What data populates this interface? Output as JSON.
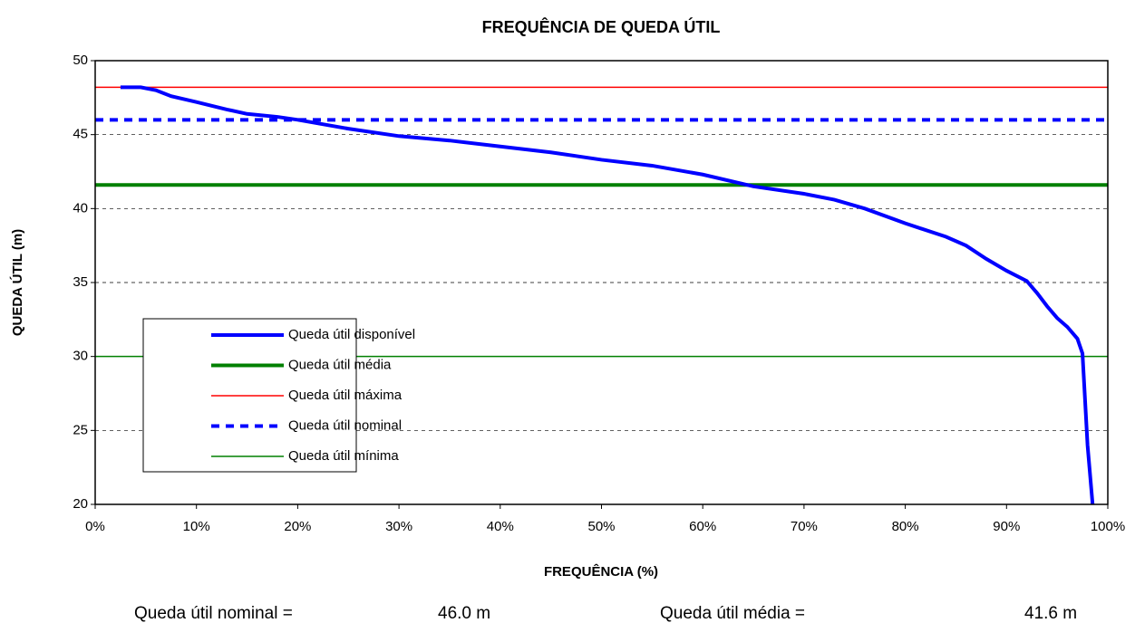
{
  "chart_data": {
    "type": "line",
    "title": "FREQUÊNCIA DE QUEDA ÚTIL",
    "xlabel": "FREQUÊNCIA (%)",
    "ylabel": "QUEDA ÚTIL (m)",
    "xlim": [
      0,
      100
    ],
    "xticks": [
      {
        "value": 0,
        "label": "0%"
      },
      {
        "value": 10,
        "label": "10%"
      },
      {
        "value": 20,
        "label": "20%"
      },
      {
        "value": 30,
        "label": "30%"
      },
      {
        "value": 40,
        "label": "40%"
      },
      {
        "value": 50,
        "label": "50%"
      },
      {
        "value": 60,
        "label": "60%"
      },
      {
        "value": 70,
        "label": "70%"
      },
      {
        "value": 80,
        "label": "80%"
      },
      {
        "value": 90,
        "label": "90%"
      },
      {
        "value": 100,
        "label": "100%"
      }
    ],
    "ylim": [
      20,
      50
    ],
    "yticks": [
      20,
      25,
      30,
      35,
      40,
      45,
      50
    ],
    "grid": true,
    "legend": "lower-left",
    "series": [
      {
        "name": "Queda útil disponível",
        "color": "#0000ff",
        "line_width": 4,
        "dashed": false,
        "x": [
          2.5,
          4.5,
          6,
          7.5,
          10,
          13,
          15,
          18,
          20,
          25,
          30,
          35,
          40,
          45,
          50,
          55,
          60,
          65,
          70,
          73,
          76,
          80,
          84,
          86,
          88,
          90,
          92,
          93,
          94,
          95,
          96,
          97,
          97.5,
          98,
          98.5
        ],
        "values": [
          48.2,
          48.2,
          48,
          47.6,
          47.2,
          46.7,
          46.4,
          46.2,
          46,
          45.4,
          44.9,
          44.6,
          44.2,
          43.8,
          43.3,
          42.9,
          42.3,
          41.5,
          41,
          40.6,
          40,
          39,
          38.1,
          37.5,
          36.6,
          35.8,
          35.1,
          34.3,
          33.4,
          32.6,
          32,
          31.2,
          30.2,
          24,
          20
        ]
      },
      {
        "name": "Queda útil média",
        "color": "#008000",
        "line_width": 4,
        "dashed": false,
        "x": [
          0,
          100
        ],
        "values": [
          41.6,
          41.6
        ]
      },
      {
        "name": "Queda útil máxima",
        "color": "#ff0000",
        "line_width": 1.5,
        "dashed": false,
        "x": [
          0,
          100
        ],
        "values": [
          48.2,
          48.2
        ]
      },
      {
        "name": "Queda útil nominal",
        "color": "#0000ff",
        "line_width": 4,
        "dashed": true,
        "x": [
          0,
          100
        ],
        "values": [
          46,
          46
        ]
      },
      {
        "name": "Queda útil mínima",
        "color": "#008000",
        "line_width": 1.5,
        "dashed": false,
        "x": [
          0,
          100
        ],
        "values": [
          30,
          30
        ]
      }
    ],
    "footer": [
      {
        "label": "Queda útil nominal =",
        "value": "46.0 m"
      },
      {
        "label": "Queda útil média =",
        "value": "41.6 m"
      }
    ]
  }
}
